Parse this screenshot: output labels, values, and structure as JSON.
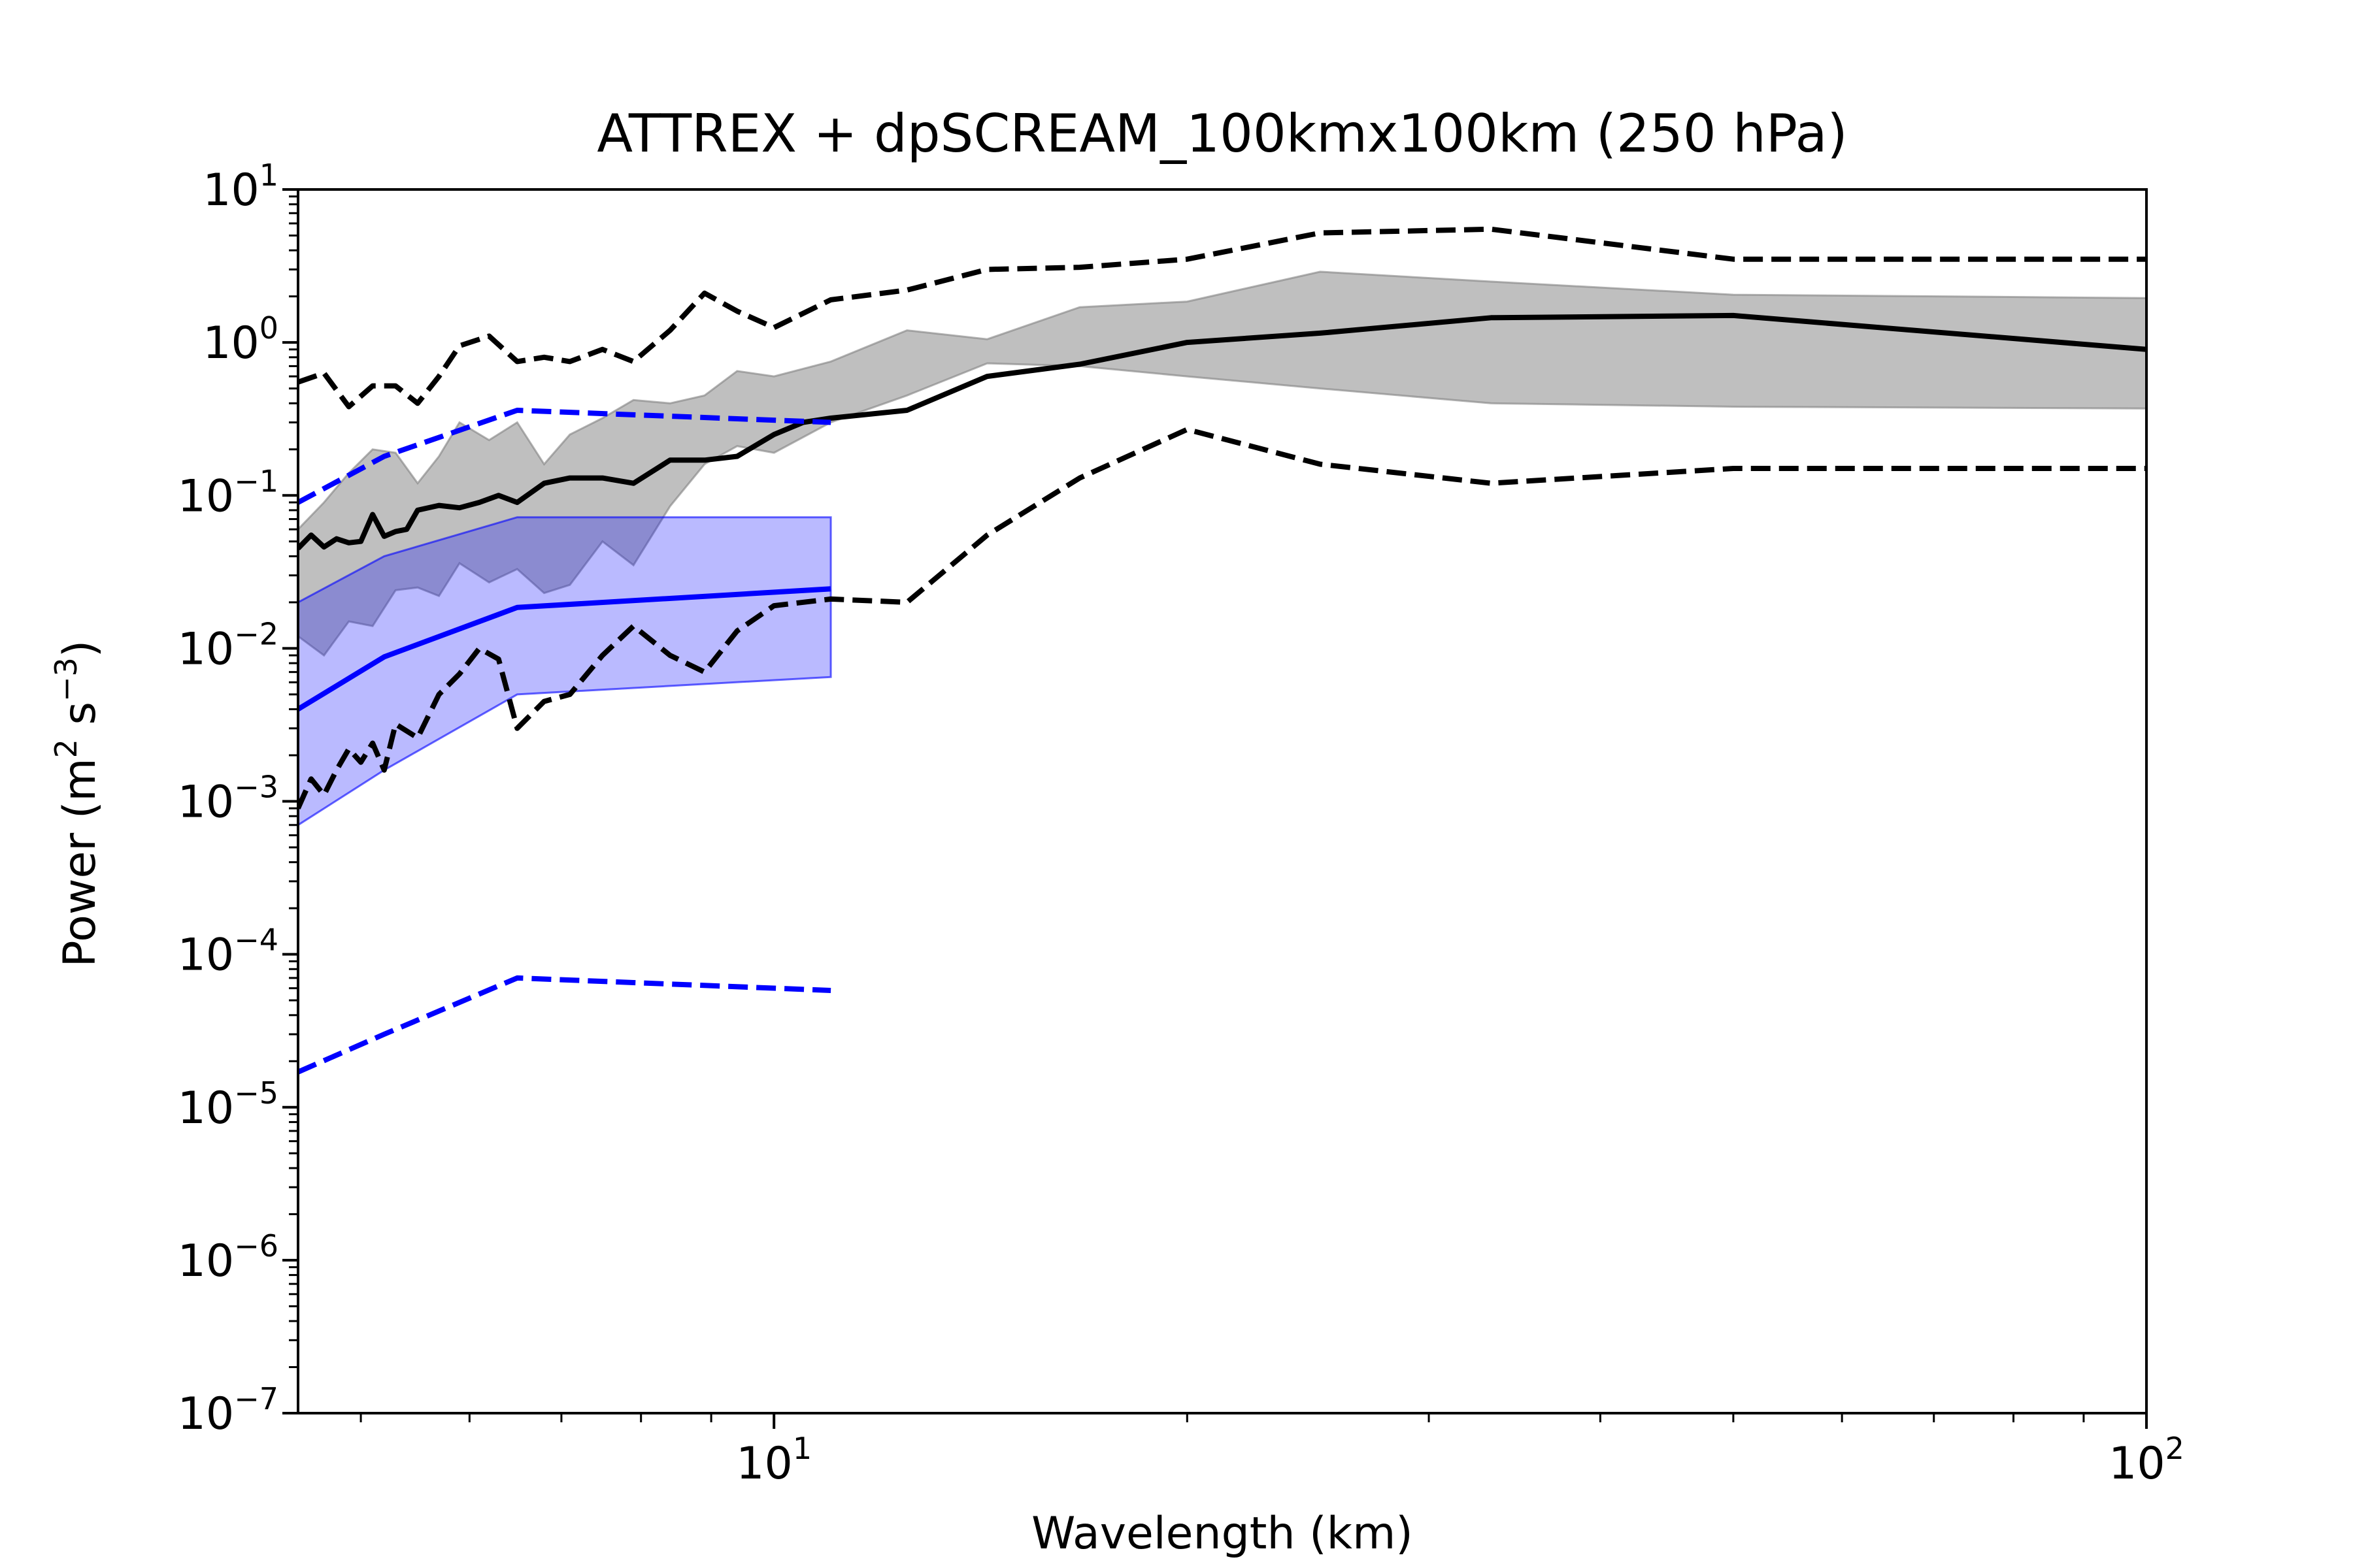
{
  "chart_data": {
    "type": "line",
    "title": "ATTREX + dpSCREAM_100kmx100km (250 hPa)",
    "xlabel": "Wavelength (km)",
    "ylabel": {
      "base": "Power (m",
      "sup1": "2",
      "mid": " s",
      "sup2": "−3",
      "end": ")"
    },
    "x_scale": "log",
    "y_scale": "log",
    "xlim": [
      4.5,
      100
    ],
    "ylim": [
      1e-07,
      10
    ],
    "grid": false,
    "legend": "none",
    "x_ticks": [
      {
        "value": 10,
        "base": "10",
        "exp": "1"
      },
      {
        "value": 100,
        "base": "10",
        "exp": "2"
      }
    ],
    "y_ticks": [
      {
        "value": 10,
        "base": "10",
        "exp": "1"
      },
      {
        "value": 1,
        "base": "10",
        "exp": "0"
      },
      {
        "value": 0.1,
        "base": "10",
        "exp": "−1"
      },
      {
        "value": 0.01,
        "base": "10",
        "exp": "−2"
      },
      {
        "value": 0.001,
        "base": "10",
        "exp": "−3"
      },
      {
        "value": 0.0001,
        "base": "10",
        "exp": "−4"
      },
      {
        "value": 1e-05,
        "base": "10",
        "exp": "−5"
      },
      {
        "value": 1e-06,
        "base": "10",
        "exp": "−6"
      },
      {
        "value": 1e-07,
        "base": "10",
        "exp": "−7"
      }
    ],
    "bands": [
      {
        "color": "#808080",
        "fill_opacity": 0.5,
        "x": [
          4.5,
          4.7,
          4.9,
          5.1,
          5.3,
          5.5,
          5.7,
          5.9,
          6.2,
          6.5,
          6.8,
          7.1,
          7.5,
          7.9,
          8.4,
          8.9,
          9.4,
          10.0,
          11.0,
          12.5,
          14.3,
          16.7,
          20.0,
          25.0,
          33.3,
          50.0,
          100.0
        ],
        "upper": [
          0.06,
          0.09,
          0.14,
          0.2,
          0.19,
          0.12,
          0.18,
          0.3,
          0.23,
          0.3,
          0.16,
          0.25,
          0.32,
          0.42,
          0.4,
          0.45,
          0.65,
          0.6,
          0.75,
          1.2,
          1.05,
          1.7,
          1.85,
          2.9,
          2.5,
          2.05,
          1.95
        ],
        "lower": [
          0.012,
          0.009,
          0.015,
          0.014,
          0.024,
          0.025,
          0.022,
          0.036,
          0.027,
          0.033,
          0.023,
          0.026,
          0.05,
          0.035,
          0.085,
          0.16,
          0.21,
          0.19,
          0.3,
          0.45,
          0.73,
          0.7,
          0.6,
          0.5,
          0.4,
          0.38,
          0.37
        ]
      },
      {
        "color": "#0000ff",
        "fill_opacity": 0.27,
        "x": [
          4.5,
          5.2,
          6.5,
          11.0
        ],
        "upper": [
          0.02,
          0.04,
          0.072,
          0.072
        ],
        "lower": [
          0.0007,
          0.0016,
          0.005,
          0.0065
        ]
      }
    ],
    "series": [
      {
        "color": "#000000",
        "dash": "solid",
        "x": [
          4.5,
          4.6,
          4.7,
          4.8,
          4.9,
          5.0,
          5.1,
          5.2,
          5.3,
          5.4,
          5.5,
          5.7,
          5.9,
          6.1,
          6.3,
          6.5,
          6.8,
          7.1,
          7.5,
          7.9,
          8.4,
          8.9,
          9.4,
          10.0,
          10.5,
          11.0,
          12.5,
          14.3,
          16.7,
          20.0,
          25.0,
          33.3,
          50.0,
          100.0
        ],
        "y": [
          0.045,
          0.055,
          0.046,
          0.052,
          0.049,
          0.05,
          0.075,
          0.054,
          0.058,
          0.06,
          0.08,
          0.086,
          0.083,
          0.09,
          0.1,
          0.09,
          0.12,
          0.13,
          0.13,
          0.12,
          0.17,
          0.17,
          0.18,
          0.25,
          0.3,
          0.32,
          0.36,
          0.6,
          0.72,
          1.0,
          1.15,
          1.45,
          1.5,
          0.9
        ]
      },
      {
        "color": "#000000",
        "dash": "dashed",
        "x": [
          4.5,
          4.7,
          4.9,
          5.1,
          5.3,
          5.5,
          5.7,
          5.9,
          6.2,
          6.5,
          6.8,
          7.1,
          7.5,
          7.9,
          8.4,
          8.9,
          9.4,
          10.0,
          11.0,
          12.5,
          14.3,
          16.7,
          20.0,
          25.0,
          33.3,
          50.0,
          100.0
        ],
        "y": [
          0.55,
          0.63,
          0.38,
          0.52,
          0.52,
          0.4,
          0.6,
          0.95,
          1.1,
          0.75,
          0.8,
          0.75,
          0.9,
          0.75,
          1.2,
          2.1,
          1.6,
          1.25,
          1.9,
          2.2,
          3.0,
          3.1,
          3.5,
          5.2,
          5.5,
          3.5,
          3.5
        ]
      },
      {
        "color": "#000000",
        "dash": "dashed",
        "x": [
          4.5,
          4.6,
          4.7,
          4.8,
          4.9,
          5.0,
          5.1,
          5.2,
          5.3,
          5.5,
          5.7,
          5.9,
          6.1,
          6.3,
          6.5,
          6.8,
          7.1,
          7.5,
          7.9,
          8.4,
          8.9,
          9.4,
          10.0,
          11.0,
          12.5,
          14.3,
          16.7,
          20.0,
          25.0,
          33.3,
          50.0,
          100.0
        ],
        "y": [
          0.0009,
          0.0014,
          0.0011,
          0.0016,
          0.0022,
          0.0018,
          0.0024,
          0.0016,
          0.0032,
          0.0026,
          0.005,
          0.0068,
          0.01,
          0.0085,
          0.003,
          0.0045,
          0.005,
          0.009,
          0.014,
          0.009,
          0.007,
          0.013,
          0.019,
          0.021,
          0.02,
          0.055,
          0.13,
          0.27,
          0.16,
          0.12,
          0.15,
          0.15
        ]
      },
      {
        "color": "#0000ff",
        "dash": "solid",
        "x": [
          4.5,
          5.2,
          6.5,
          11.0
        ],
        "y": [
          0.004,
          0.0088,
          0.0185,
          0.0245
        ]
      },
      {
        "color": "#0000ff",
        "dash": "dashed",
        "x": [
          4.5,
          5.2,
          6.5,
          11.0
        ],
        "y": [
          0.09,
          0.18,
          0.36,
          0.3
        ]
      },
      {
        "color": "#0000ff",
        "dash": "dashed",
        "x": [
          4.5,
          5.2,
          6.5,
          11.0
        ],
        "y": [
          1.7e-05,
          3e-05,
          7e-05,
          5.8e-05
        ]
      }
    ]
  }
}
